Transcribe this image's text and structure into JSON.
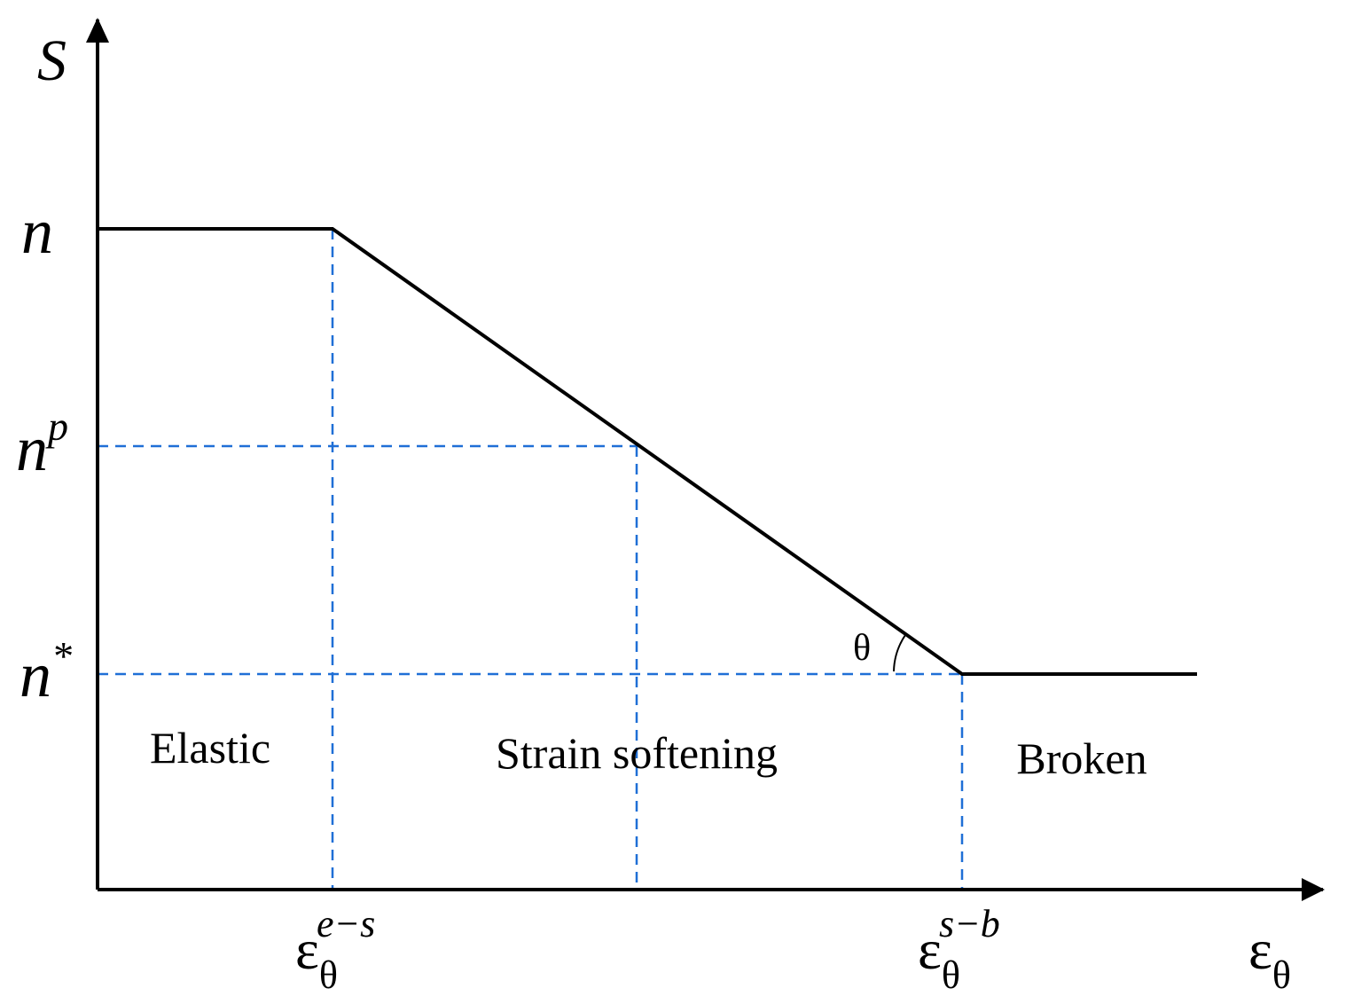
{
  "axes": {
    "y_label": "S",
    "x_label": {
      "base": "ε",
      "sub": "θ"
    }
  },
  "y_levels": [
    {
      "base": "n"
    },
    {
      "base": "n",
      "sup": "p"
    },
    {
      "base": "n",
      "sup": "*"
    }
  ],
  "x_marks": [
    {
      "base": "ε",
      "sub": "θ",
      "sup": "e−s"
    },
    {
      "base": "ε",
      "sub": "θ",
      "sup": "s−b"
    }
  ],
  "angle_label": "θ",
  "regions": [
    "Elastic",
    "Strain softening",
    "Broken"
  ]
}
